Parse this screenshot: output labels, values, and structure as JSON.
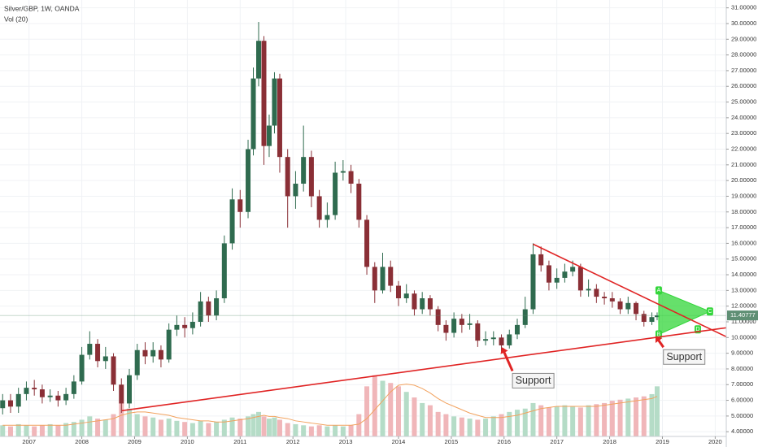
{
  "chart_data": {
    "type": "candlestick",
    "title": "Silver/GBP, 1W, OANDA",
    "subtitle": "Vol (20)",
    "xlim": [
      2006.45,
      2020.21
    ],
    "ylim": [
      3.7,
      31.5
    ],
    "volume_lim": [
      0,
      100
    ],
    "grid": true,
    "up_color": "#2f6b4f",
    "down_color": "#8a2f36",
    "volume_up_color": "#b5dcc7",
    "volume_down_color": "#f0b6b9",
    "volume_ma_color": "#f2a25e",
    "xticks": [
      2007,
      2008,
      2009,
      2010,
      2011,
      2012,
      2013,
      2014,
      2015,
      2016,
      2017,
      2018,
      2019,
      2020
    ],
    "yticks": [
      {
        "value": 4,
        "label": "4.00000"
      },
      {
        "value": 5,
        "label": "5.00000"
      },
      {
        "value": 6,
        "label": "6.00000"
      },
      {
        "value": 7,
        "label": "7.00000"
      },
      {
        "value": 8,
        "label": "8.00000"
      },
      {
        "value": 9,
        "label": "9.00000"
      },
      {
        "value": 10,
        "label": "10.00000"
      },
      {
        "value": 11,
        "label": "11.00000"
      },
      {
        "value": 12,
        "label": "12.00000"
      },
      {
        "value": 13,
        "label": "13.00000"
      },
      {
        "value": 14,
        "label": "14.00000"
      },
      {
        "value": 15,
        "label": "15.00000"
      },
      {
        "value": 16,
        "label": "16.00000"
      },
      {
        "value": 17,
        "label": "17.00000"
      },
      {
        "value": 18,
        "label": "18.00000"
      },
      {
        "value": 19,
        "label": "19.00000"
      },
      {
        "value": 20,
        "label": "20.00000"
      },
      {
        "value": 21,
        "label": "21.00000"
      },
      {
        "value": 22,
        "label": "22.00000"
      },
      {
        "value": 23,
        "label": "23.00000"
      },
      {
        "value": 24,
        "label": "24.00000"
      },
      {
        "value": 25,
        "label": "25.00000"
      },
      {
        "value": 26,
        "label": "26.00000"
      },
      {
        "value": 27,
        "label": "27.00000"
      },
      {
        "value": 28,
        "label": "28.00000"
      },
      {
        "value": 29,
        "label": "29.00000"
      },
      {
        "value": 30,
        "label": "30.00000"
      },
      {
        "value": 31,
        "label": "31.00000"
      }
    ],
    "last_price": 11.40777,
    "last_price_color": "#5f8f74",
    "x": [
      2006.5,
      2006.65,
      2006.8,
      2006.95,
      2007.1,
      2007.25,
      2007.4,
      2007.55,
      2007.7,
      2007.85,
      2008.0,
      2008.15,
      2008.3,
      2008.45,
      2008.6,
      2008.75,
      2008.9,
      2009.05,
      2009.2,
      2009.35,
      2009.5,
      2009.65,
      2009.8,
      2009.95,
      2010.1,
      2010.25,
      2010.4,
      2010.55,
      2010.7,
      2010.85,
      2011.0,
      2011.15,
      2011.25,
      2011.35,
      2011.45,
      2011.55,
      2011.65,
      2011.75,
      2011.9,
      2012.05,
      2012.2,
      2012.35,
      2012.5,
      2012.65,
      2012.8,
      2012.95,
      2013.1,
      2013.25,
      2013.4,
      2013.55,
      2013.7,
      2013.85,
      2014.0,
      2014.15,
      2014.3,
      2014.45,
      2014.6,
      2014.75,
      2014.9,
      2015.05,
      2015.2,
      2015.35,
      2015.5,
      2015.65,
      2015.8,
      2015.95,
      2016.1,
      2016.25,
      2016.4,
      2016.55,
      2016.7,
      2016.85,
      2017.0,
      2017.15,
      2017.3,
      2017.45,
      2017.6,
      2017.75,
      2017.9,
      2018.05,
      2018.2,
      2018.35,
      2018.5,
      2018.65,
      2018.8,
      2018.9
    ],
    "open": [
      5.5,
      6.0,
      5.6,
      6.4,
      6.8,
      6.7,
      6.2,
      6.3,
      6.0,
      6.4,
      7.2,
      8.9,
      9.6,
      8.5,
      8.8,
      7.0,
      5.8,
      7.6,
      9.2,
      8.8,
      9.2,
      8.6,
      10.5,
      10.8,
      10.6,
      11.0,
      12.3,
      11.4,
      12.5,
      16.0,
      18.8,
      18.0,
      22.0,
      26.5,
      28.9,
      22.2,
      23.5,
      26.5,
      21.5,
      19.0,
      19.8,
      21.5,
      19.0,
      17.5,
      17.8,
      20.5,
      20.6,
      19.8,
      17.5,
      14.5,
      13.0,
      14.5,
      13.3,
      12.5,
      12.8,
      11.8,
      12.5,
      11.8,
      10.8,
      10.3,
      11.2,
      10.8,
      10.9,
      9.8,
      9.9,
      10.0,
      9.5,
      10.2,
      10.8,
      11.8,
      15.3,
      14.6,
      13.5,
      13.8,
      14.2,
      14.5,
      13.0,
      13.1,
      12.6,
      12.5,
      12.3,
      11.8,
      12.2,
      11.5,
      11.0,
      11.3
    ],
    "high": [
      6.4,
      6.4,
      6.8,
      7.2,
      7.3,
      7.0,
      6.7,
      6.6,
      6.8,
      7.6,
      9.4,
      10.4,
      9.9,
      9.4,
      9.0,
      7.4,
      8.0,
      9.6,
      9.7,
      9.7,
      9.5,
      10.9,
      11.4,
      11.3,
      11.6,
      12.9,
      12.6,
      13.0,
      16.5,
      19.5,
      19.4,
      22.6,
      27.2,
      30.1,
      29.2,
      24.2,
      26.9,
      26.8,
      22.0,
      20.6,
      23.5,
      21.9,
      19.4,
      18.6,
      21.2,
      21.3,
      21.0,
      20.1,
      17.8,
      14.8,
      15.4,
      14.9,
      13.6,
      13.4,
      13.0,
      12.9,
      12.7,
      12.0,
      11.1,
      11.6,
      11.5,
      11.5,
      11.1,
      10.4,
      10.4,
      10.2,
      10.5,
      11.2,
      12.6,
      16.0,
      15.8,
      14.9,
      14.4,
      14.7,
      14.9,
      14.7,
      13.7,
      13.4,
      12.9,
      12.9,
      12.5,
      12.6,
      12.3,
      11.7,
      11.6,
      11.6
    ],
    "low": [
      5.1,
      5.2,
      5.2,
      6.0,
      6.3,
      5.8,
      5.9,
      5.6,
      5.7,
      6.1,
      7.0,
      8.6,
      8.1,
      8.0,
      6.6,
      5.2,
      5.5,
      7.3,
      8.3,
      8.4,
      8.1,
      8.4,
      10.1,
      10.0,
      10.2,
      10.7,
      11.0,
      11.1,
      12.2,
      15.6,
      17.0,
      17.6,
      21.6,
      26.0,
      21.0,
      21.5,
      23.0,
      20.5,
      17.0,
      18.2,
      19.3,
      18.3,
      17.0,
      17.0,
      17.5,
      20.0,
      19.2,
      17.0,
      14.0,
      12.2,
      12.8,
      12.9,
      12.0,
      12.2,
      11.4,
      11.5,
      11.4,
      10.4,
      9.8,
      10.0,
      10.3,
      10.5,
      9.4,
      9.5,
      9.5,
      9.1,
      9.3,
      9.9,
      10.6,
      11.5,
      14.2,
      13.0,
      13.1,
      13.5,
      13.9,
      12.6,
      12.6,
      12.2,
      12.1,
      11.9,
      11.5,
      11.5,
      11.1,
      10.7,
      10.8,
      11.1
    ],
    "close": [
      6.0,
      5.6,
      6.4,
      6.8,
      6.7,
      6.2,
      6.3,
      6.0,
      6.4,
      7.2,
      8.9,
      9.6,
      8.5,
      8.8,
      7.0,
      5.8,
      7.6,
      9.2,
      8.8,
      9.2,
      8.6,
      10.5,
      10.8,
      10.6,
      11.0,
      12.3,
      11.4,
      12.5,
      16.0,
      18.8,
      18.0,
      22.0,
      26.5,
      28.9,
      22.2,
      23.5,
      26.5,
      21.5,
      19.0,
      19.8,
      21.5,
      19.0,
      17.5,
      17.8,
      20.5,
      20.6,
      19.8,
      17.5,
      14.5,
      13.0,
      14.5,
      13.3,
      12.5,
      12.8,
      11.8,
      12.5,
      11.8,
      10.8,
      10.3,
      11.2,
      10.8,
      10.9,
      9.8,
      9.9,
      10.0,
      9.5,
      10.2,
      10.8,
      11.8,
      15.3,
      14.6,
      13.5,
      13.8,
      14.2,
      14.5,
      13.0,
      13.1,
      12.6,
      12.5,
      12.3,
      11.8,
      12.2,
      11.5,
      11.0,
      11.3,
      11.41
    ],
    "volume": [
      10,
      9,
      11,
      10,
      9,
      10,
      11,
      10,
      12,
      13,
      15,
      18,
      16,
      15,
      20,
      30,
      25,
      20,
      18,
      17,
      15,
      16,
      14,
      13,
      12,
      14,
      12,
      13,
      15,
      17,
      16,
      18,
      20,
      22,
      18,
      16,
      17,
      15,
      12,
      11,
      10,
      9,
      10,
      9,
      10,
      9,
      10,
      20,
      45,
      55,
      50,
      48,
      45,
      40,
      35,
      30,
      28,
      22,
      20,
      18,
      17,
      16,
      15,
      16,
      18,
      20,
      22,
      24,
      25,
      30,
      28,
      26,
      27,
      28,
      27,
      26,
      28,
      29,
      30,
      32,
      33,
      34,
      35,
      36,
      38,
      45
    ],
    "volume_ma": [
      10,
      10,
      10,
      10,
      10,
      10,
      10,
      10,
      10,
      11,
      12,
      13,
      14,
      15,
      16,
      19,
      21,
      22,
      22,
      21,
      20,
      19,
      17,
      16,
      15,
      14,
      14,
      13,
      13,
      14,
      15,
      16,
      17,
      18,
      19,
      18,
      18,
      17,
      16,
      14,
      13,
      12,
      11,
      10,
      10,
      10,
      10,
      11,
      16,
      24,
      32,
      40,
      46,
      47,
      46,
      43,
      39,
      34,
      30,
      27,
      24,
      21,
      19,
      17,
      17,
      17,
      18,
      19,
      21,
      23,
      25,
      26,
      27,
      27,
      27,
      27,
      27,
      27,
      28,
      29,
      30,
      31,
      32,
      33,
      34,
      36
    ],
    "trendlines": [
      {
        "color": "#e02424",
        "x1": 2008.76,
        "y1": 5.34,
        "x2": 2020.21,
        "y2": 10.62
      },
      {
        "color": "#e02424",
        "x1": 2016.55,
        "y1": 15.95,
        "x2": 2020.21,
        "y2": 10.05
      }
    ],
    "triangle": {
      "color": "#33d63a",
      "points": [
        {
          "label": "A",
          "x": 2018.93,
          "y": 13.0
        },
        {
          "label": "C",
          "x": 2019.9,
          "y": 11.66
        },
        {
          "label": "B",
          "x": 2018.93,
          "y": 10.2
        }
      ],
      "extra_label": {
        "label": "D",
        "x": 2019.67,
        "y": 10.52
      }
    },
    "annotations": [
      {
        "text": "Support",
        "x": 2016.19,
        "y": 7.25,
        "tip_x": 2015.96,
        "tip_y": 9.38
      },
      {
        "text": "Support",
        "x": 2019.05,
        "y": 8.76,
        "tip_x": 2018.87,
        "tip_y": 10.1
      }
    ]
  }
}
